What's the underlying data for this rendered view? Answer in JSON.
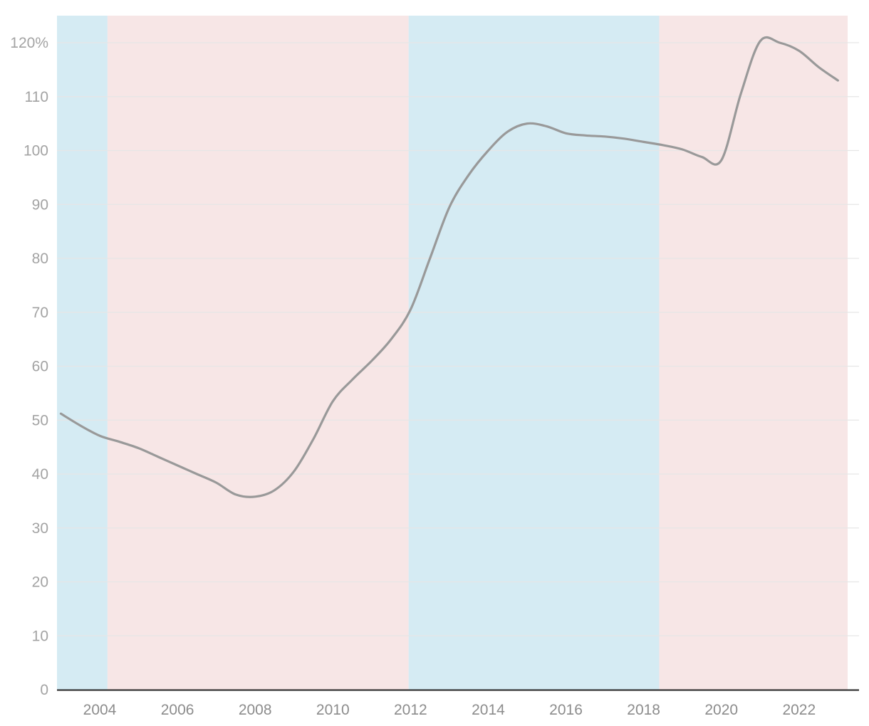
{
  "chart_data": {
    "type": "line",
    "title": "",
    "xlabel": "",
    "ylabel": "",
    "xlim": [
      2002.9,
      2023.25
    ],
    "ylim": [
      0,
      120
    ],
    "y_tick_values": [
      0,
      10,
      20,
      30,
      40,
      50,
      60,
      70,
      80,
      90,
      100,
      110,
      120
    ],
    "y_tick_labels": [
      "0",
      "10",
      "20",
      "30",
      "40",
      "50",
      "60",
      "70",
      "80",
      "90",
      "100",
      "110",
      "120%"
    ],
    "x_tick_values": [
      2004,
      2006,
      2008,
      2010,
      2012,
      2014,
      2016,
      2018,
      2020,
      2022
    ],
    "x_tick_labels": [
      "2004",
      "2006",
      "2008",
      "2010",
      "2012",
      "2014",
      "2016",
      "2018",
      "2020",
      "2022"
    ],
    "grid": true,
    "shaded_periods": [
      {
        "start": 2002.9,
        "end": 2004.2,
        "color": "#d5ebf3"
      },
      {
        "start": 2004.2,
        "end": 2011.95,
        "color": "#f7e6e6"
      },
      {
        "start": 2011.95,
        "end": 2018.4,
        "color": "#d5ebf3"
      },
      {
        "start": 2018.4,
        "end": 2023.25,
        "color": "#f7e6e6"
      }
    ],
    "series": [
      {
        "color": "#999999",
        "x": [
          2003.0,
          2003.5,
          2004.0,
          2004.5,
          2005.0,
          2005.5,
          2006.0,
          2006.5,
          2007.0,
          2007.5,
          2008.0,
          2008.5,
          2009.0,
          2009.5,
          2010.0,
          2010.5,
          2011.0,
          2011.5,
          2012.0,
          2012.5,
          2013.0,
          2013.5,
          2014.0,
          2014.5,
          2015.0,
          2015.5,
          2016.0,
          2016.5,
          2017.0,
          2017.5,
          2018.0,
          2018.5,
          2019.0,
          2019.5,
          2020.0,
          2020.5,
          2021.0,
          2021.5,
          2022.0,
          2022.5,
          2023.0
        ],
        "y": [
          51.2,
          49.0,
          47.1,
          46.0,
          44.8,
          43.2,
          41.6,
          40.0,
          38.4,
          36.2,
          35.8,
          37.0,
          40.5,
          46.5,
          53.5,
          57.5,
          61.0,
          65.0,
          70.5,
          80.0,
          89.5,
          95.5,
          100.0,
          103.5,
          105.0,
          104.5,
          103.2,
          102.8,
          102.6,
          102.2,
          101.6,
          101.0,
          100.2,
          98.8,
          98.2,
          110.5,
          120.3,
          120.0,
          118.5,
          115.5,
          113.0
        ]
      }
    ]
  }
}
